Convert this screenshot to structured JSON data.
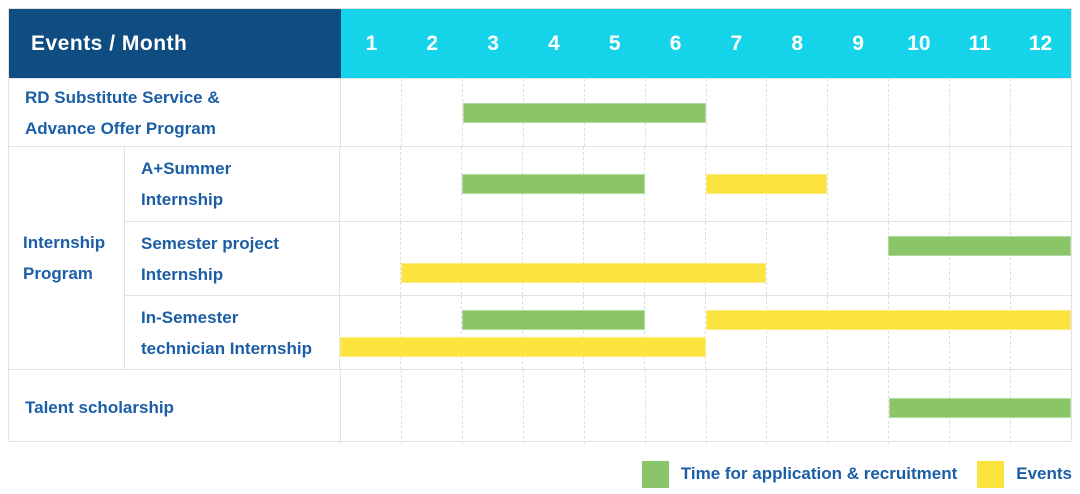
{
  "colors": {
    "navy": "#0f4c81",
    "cyan": "#15d4ea",
    "green": "#8bc56a",
    "yellow": "#fde33e",
    "text_blue": "#1b5ea6",
    "grid": "#e2e2e2"
  },
  "table": {
    "header": {
      "title": "Events / Month",
      "months": [
        "1",
        "2",
        "3",
        "4",
        "5",
        "6",
        "7",
        "8",
        "9",
        "10",
        "11",
        "12"
      ]
    },
    "rows": [
      {
        "type": "single",
        "height": 68,
        "label_lines": [
          "RD Substitute Service &",
          "Advance Offer Program"
        ],
        "bars": [
          {
            "color": "green",
            "start": 3,
            "end": 7,
            "lane": "center"
          }
        ]
      },
      {
        "type": "group",
        "group_label_lines": [
          "Internship",
          "Program"
        ],
        "children": [
          {
            "height": 74,
            "label_lines": [
              "A+Summer",
              "Internship"
            ],
            "bars": [
              {
                "color": "green",
                "start": 3,
                "end": 6,
                "lane": "center"
              },
              {
                "color": "yellow",
                "start": 7,
                "end": 9,
                "lane": "center"
              }
            ]
          },
          {
            "height": 74,
            "label_lines": [
              "Semester project",
              "Internship"
            ],
            "bars": [
              {
                "color": "green",
                "start": 10,
                "end": 13,
                "lane": "top"
              },
              {
                "color": "yellow",
                "start": 2,
                "end": 8,
                "lane": "bottom"
              }
            ]
          },
          {
            "height": 74,
            "label_lines": [
              "In-Semester",
              "technician Internship"
            ],
            "bars": [
              {
                "color": "green",
                "start": 3,
                "end": 6,
                "lane": "top"
              },
              {
                "color": "yellow",
                "start": 7,
                "end": 13,
                "lane": "top"
              },
              {
                "color": "yellow",
                "start": 1,
                "end": 7,
                "lane": "bottom"
              }
            ]
          }
        ]
      },
      {
        "type": "single",
        "height": 75,
        "label_lines": [
          "Talent scholarship"
        ],
        "bars": [
          {
            "color": "green",
            "start": 10,
            "end": 13,
            "lane": "center"
          }
        ]
      }
    ]
  },
  "legend": {
    "items": [
      {
        "color": "green",
        "label": "Time for application & recruitment"
      },
      {
        "color": "yellow",
        "label": "Events"
      }
    ]
  },
  "chart_data": {
    "type": "bar",
    "variant": "gantt-timeline",
    "title": "Events / Month",
    "xlabel": "Month",
    "x_ticks": [
      1,
      2,
      3,
      4,
      5,
      6,
      7,
      8,
      9,
      10,
      11,
      12
    ],
    "x_range": [
      1,
      12
    ],
    "grid": true,
    "legend_position": "bottom-right",
    "legend": [
      "Time for application & recruitment",
      "Events"
    ],
    "tasks": [
      {
        "group": null,
        "name": "RD Substitute Service & Advance Offer Program",
        "segments": [
          {
            "kind": "Time for application & recruitment",
            "months_inclusive": [
              3,
              6
            ]
          }
        ]
      },
      {
        "group": "Internship Program",
        "name": "A+Summer Internship",
        "segments": [
          {
            "kind": "Time for application & recruitment",
            "months_inclusive": [
              3,
              5
            ]
          },
          {
            "kind": "Events",
            "months_inclusive": [
              7,
              8
            ]
          }
        ]
      },
      {
        "group": "Internship Program",
        "name": "Semester project Internship",
        "segments": [
          {
            "kind": "Time for application & recruitment",
            "months_inclusive": [
              10,
              12
            ]
          },
          {
            "kind": "Events",
            "months_inclusive": [
              2,
              7
            ]
          }
        ]
      },
      {
        "group": "Internship Program",
        "name": "In-Semester technician Internship",
        "segments": [
          {
            "kind": "Time for application & recruitment",
            "months_inclusive": [
              3,
              5
            ]
          },
          {
            "kind": "Events",
            "months_inclusive": [
              7,
              12
            ]
          },
          {
            "kind": "Events",
            "months_inclusive": [
              1,
              6
            ]
          }
        ]
      },
      {
        "group": null,
        "name": "Talent scholarship",
        "segments": [
          {
            "kind": "Time for application & recruitment",
            "months_inclusive": [
              10,
              12
            ]
          }
        ]
      }
    ]
  }
}
